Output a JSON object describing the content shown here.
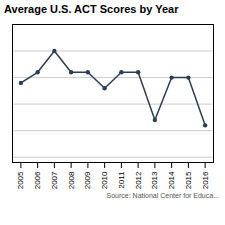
{
  "chart_data": {
    "type": "line",
    "title": "Average U.S. ACT Scores by Year",
    "x": [
      2005,
      2006,
      2007,
      2008,
      2009,
      2010,
      2011,
      2012,
      2013,
      2014,
      2015,
      2016
    ],
    "values": [
      20.9,
      21.1,
      21.5,
      21.1,
      21.1,
      20.8,
      21.1,
      21.1,
      20.2,
      21.0,
      21.0,
      20.1
    ],
    "color": "#2d3e50",
    "marker": "circle",
    "xlim": [
      2004.5,
      2016.5
    ],
    "xticks": [
      2005,
      2006,
      2007,
      2008,
      2009,
      2010,
      2011,
      2012,
      2013,
      2014,
      2015,
      2016
    ],
    "ylim": [
      19.4,
      22.0
    ],
    "yticks": [
      19.5,
      20.0,
      20.5,
      21.0,
      21.5,
      22.0
    ],
    "grid": true,
    "tick_labels": "x",
    "annotations": [
      "Source: National Center for Educa..."
    ]
  }
}
